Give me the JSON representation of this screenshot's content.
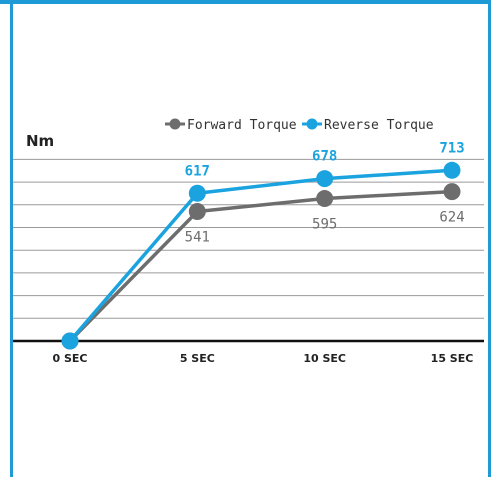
{
  "chart_data": {
    "type": "line",
    "categories": [
      "0 SEC",
      "5 SEC",
      "10 SEC",
      "15 SEC"
    ],
    "ylabel": "Nm",
    "ylim": [
      0,
      900
    ],
    "grid": true,
    "legend_position": "top-right",
    "series": [
      {
        "name": "Forward Torque",
        "values": [
          0,
          541,
          595,
          624
        ],
        "color": "#6d6d6d"
      },
      {
        "name": "Reverse Torque",
        "values": [
          0,
          617,
          678,
          713
        ],
        "color": "#1aa3de"
      }
    ]
  },
  "colors": {
    "frame": "#1e9ad6",
    "grid": "#9a9a9a",
    "axis": "#111111"
  }
}
